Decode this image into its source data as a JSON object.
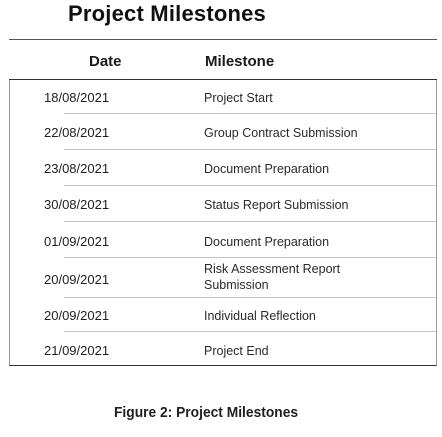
{
  "title": "Project Milestones",
  "table": {
    "headers": {
      "date": "Date",
      "milestone": "Milestone"
    },
    "rows": [
      {
        "date": "18/08/2021",
        "milestone": "Project Start"
      },
      {
        "date": "22/08/2021",
        "milestone": "Group Contract Submission"
      },
      {
        "date": "23/08/2021",
        "milestone": "Document Preparation"
      },
      {
        "date": "30/08/2021",
        "milestone": "Status Report Submission"
      },
      {
        "date": "01/09/2021",
        "milestone": "Document Preparation"
      },
      {
        "date": "20/09/2021",
        "milestone": "Risk Assessment Report Submission"
      },
      {
        "date": "20/09/2021",
        "milestone": "Individual Reflection"
      },
      {
        "date": "21/09/2021",
        "milestone": "Project End"
      }
    ]
  },
  "caption": "Figure 2: Project Milestones"
}
